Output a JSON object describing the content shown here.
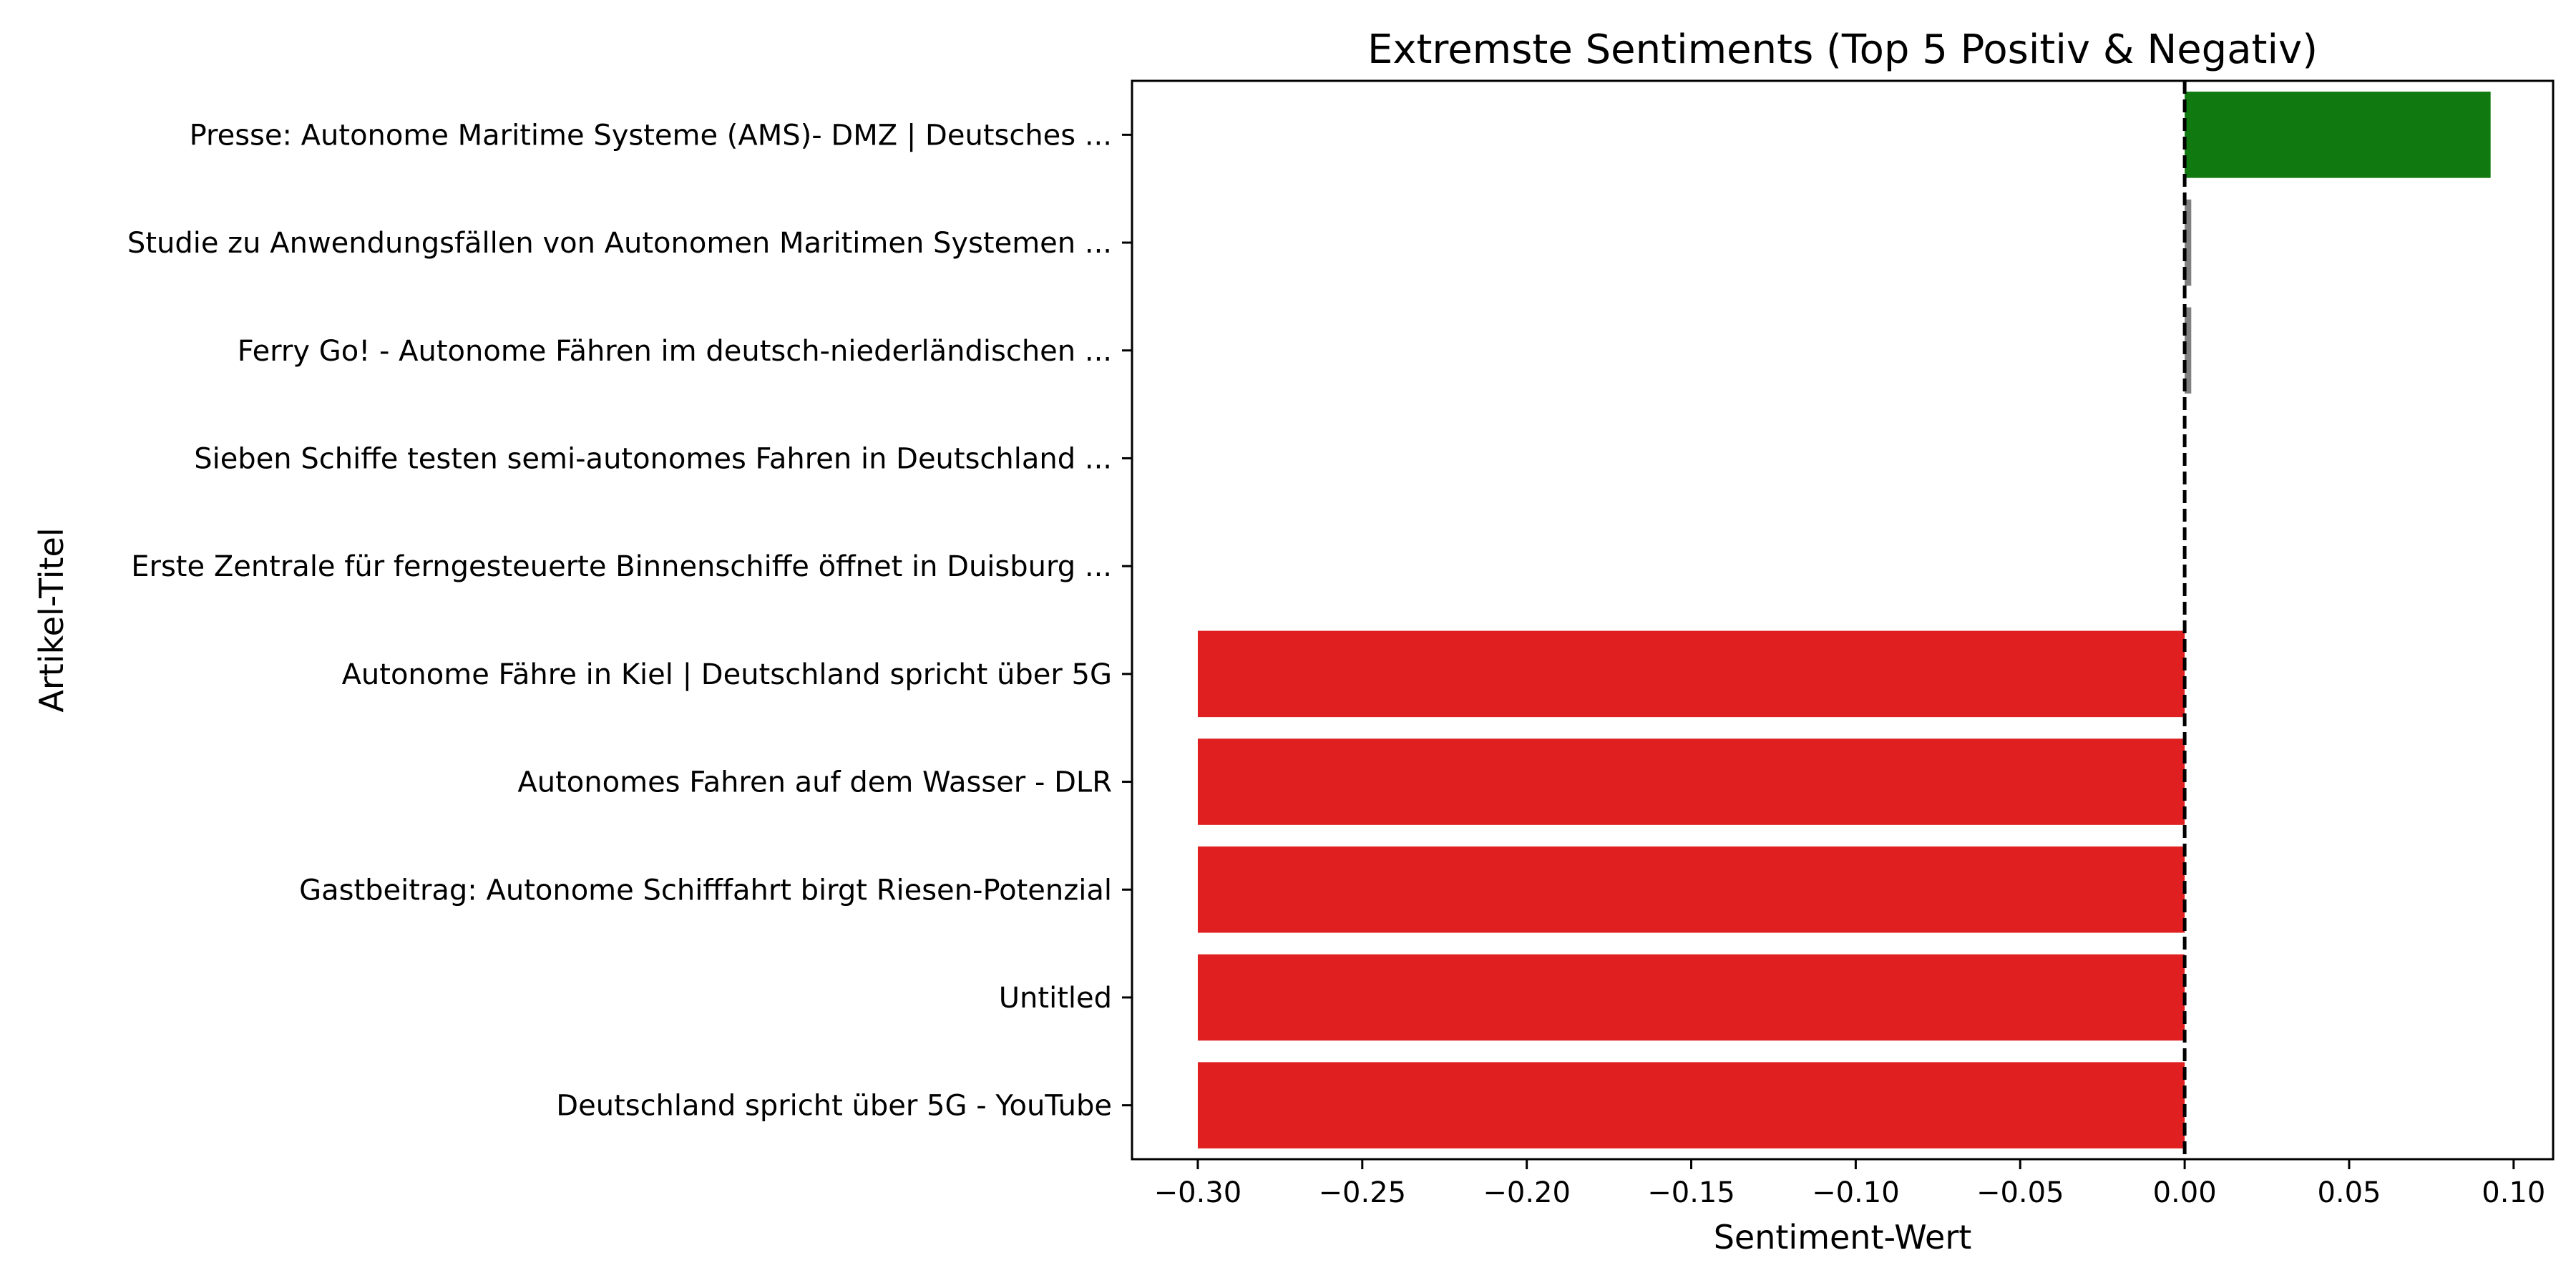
{
  "chart_data": {
    "type": "bar",
    "orientation": "horizontal",
    "title": "Extremste Sentiments (Top 5 Positiv & Negativ)",
    "xlabel": "Sentiment-Wert",
    "ylabel": "Artikel-Titel",
    "xlim": [
      -0.32,
      0.112
    ],
    "xticks": [
      -0.3,
      -0.25,
      -0.2,
      -0.15,
      -0.1,
      -0.05,
      0.0,
      0.05,
      0.1
    ],
    "xtick_labels": [
      "−0.30",
      "−0.25",
      "−0.20",
      "−0.15",
      "−0.10",
      "−0.05",
      "0.00",
      "0.05",
      "0.10"
    ],
    "reference_line": {
      "x": 0,
      "style": "dashed",
      "color": "#000000"
    },
    "grid": false,
    "legend": "none",
    "categories": [
      "Presse: Autonome Maritime Systeme (AMS)- DMZ | Deutsches ...",
      "Studie zu Anwendungsfällen von Autonomen Maritimen Systemen ...",
      "Ferry Go! - Autonome Fähren im deutsch-niederländischen ...",
      "Sieben Schiffe testen semi-autonomes Fahren in Deutschland ...",
      "Erste Zentrale für ferngesteuerte Binnenschiffe öffnet in Duisburg ...",
      "Autonome Fähre in Kiel | Deutschland spricht über 5G",
      "Autonomes Fahren auf dem Wasser - DLR",
      "Gastbeitrag: Autonome Schifffahrt birgt Riesen-Potenzial",
      "Untitled",
      "Deutschland spricht über 5G - YouTube"
    ],
    "values": [
      0.093,
      0.002,
      0.002,
      0.0,
      0.0,
      -0.3,
      -0.3,
      -0.3,
      -0.3,
      -0.3
    ],
    "colors": [
      "#107a10",
      "#808080",
      "#808080",
      "#808080",
      "#808080",
      "#e02020",
      "#e02020",
      "#e02020",
      "#e02020",
      "#e02020"
    ]
  }
}
